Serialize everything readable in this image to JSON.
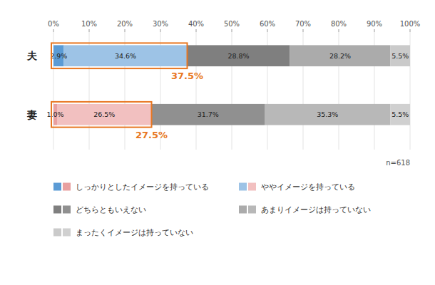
{
  "chart_data": {
    "type": "bar",
    "orientation": "horizontal",
    "stacked": true,
    "data_labels": true,
    "grid": true,
    "legend": "bottom",
    "categories": [
      "夫",
      "妻"
    ],
    "series": [
      {
        "name": "しっかりとしたイメージを持っている",
        "values": [
          2.9,
          1.0
        ],
        "value_labels": [
          "2.9%",
          "1.0%"
        ],
        "colors": [
          "#5B9BD5",
          "#E8A0A0"
        ]
      },
      {
        "name": "ややイメージを持っている",
        "values": [
          34.6,
          26.5
        ],
        "value_labels": [
          "34.6%",
          "26.5%"
        ],
        "colors": [
          "#9DC3E6",
          "#F2C0C0"
        ]
      },
      {
        "name": "どちらともいえない",
        "values": [
          28.8,
          31.7
        ],
        "value_labels": [
          "28.8%",
          "31.7%"
        ],
        "colors": [
          "#7F7F7F",
          "#909090"
        ]
      },
      {
        "name": "あまりイメージは持っていない",
        "values": [
          28.2,
          35.3
        ],
        "value_labels": [
          "28.2%",
          "35.3%"
        ],
        "colors": [
          "#ABABAB",
          "#B8B8B8"
        ]
      },
      {
        "name": "まったくイメージは持っていない",
        "values": [
          5.5,
          5.5
        ],
        "value_labels": [
          "5.5%",
          "5.5%"
        ],
        "colors": [
          "#CACACA",
          "#D0D0D0"
        ]
      }
    ],
    "annotations": [
      {
        "text": "37.5%",
        "value": 37.5,
        "category": "夫",
        "color": "#E87722"
      },
      {
        "text": "27.5%",
        "value": 27.5,
        "category": "妻",
        "color": "#E87722"
      },
      {
        "text": "n=618"
      }
    ],
    "xlim": [
      0,
      100
    ],
    "xticks": [
      {
        "value": 0,
        "label": "0%"
      },
      {
        "value": 10,
        "label": "10%"
      },
      {
        "value": 20,
        "label": "20%"
      },
      {
        "value": 30,
        "label": "30%"
      },
      {
        "value": 40,
        "label": "40%"
      },
      {
        "value": 50,
        "label": "50%"
      },
      {
        "value": 60,
        "label": "60%"
      },
      {
        "value": 70,
        "label": "70%"
      },
      {
        "value": 80,
        "label": "80%"
      },
      {
        "value": 90,
        "label": "90%"
      },
      {
        "value": 100,
        "label": "100%"
      }
    ]
  }
}
